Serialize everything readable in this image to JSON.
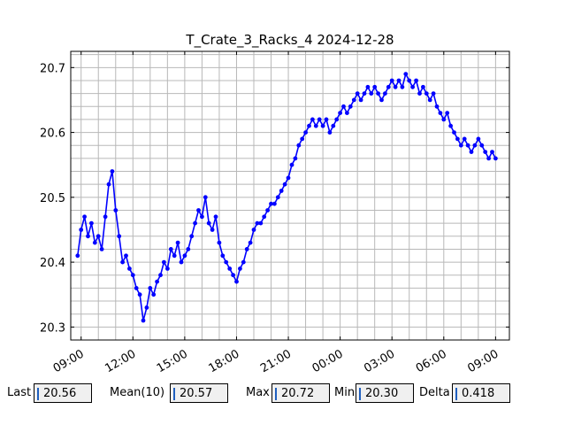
{
  "chart_data": {
    "type": "line",
    "title": "T_Crate_3_Racks_4 2024-12-28",
    "xlabel": "",
    "ylabel": "",
    "x_ticks": [
      "09:00",
      "12:00",
      "15:00",
      "18:00",
      "21:00",
      "00:00",
      "03:00",
      "06:00",
      "09:00"
    ],
    "x_range_hours": [
      8.4,
      33.8
    ],
    "y_ticks": [
      "20.3",
      "20.4",
      "20.5",
      "20.6",
      "20.7"
    ],
    "ylim": [
      20.28,
      20.725
    ],
    "grid": true,
    "marker": "o",
    "series": [
      {
        "color": "#0000ff",
        "points": [
          [
            8.8,
            20.41
          ],
          [
            9.0,
            20.45
          ],
          [
            9.2,
            20.47
          ],
          [
            9.4,
            20.44
          ],
          [
            9.6,
            20.46
          ],
          [
            9.8,
            20.43
          ],
          [
            10.0,
            20.44
          ],
          [
            10.2,
            20.42
          ],
          [
            10.4,
            20.47
          ],
          [
            10.6,
            20.52
          ],
          [
            10.8,
            20.54
          ],
          [
            11.0,
            20.48
          ],
          [
            11.2,
            20.44
          ],
          [
            11.4,
            20.4
          ],
          [
            11.6,
            20.41
          ],
          [
            11.8,
            20.39
          ],
          [
            12.0,
            20.38
          ],
          [
            12.2,
            20.36
          ],
          [
            12.4,
            20.35
          ],
          [
            12.6,
            20.31
          ],
          [
            12.8,
            20.33
          ],
          [
            13.0,
            20.36
          ],
          [
            13.2,
            20.35
          ],
          [
            13.4,
            20.37
          ],
          [
            13.6,
            20.38
          ],
          [
            13.8,
            20.4
          ],
          [
            14.0,
            20.39
          ],
          [
            14.2,
            20.42
          ],
          [
            14.4,
            20.41
          ],
          [
            14.6,
            20.43
          ],
          [
            14.8,
            20.4
          ],
          [
            15.0,
            20.41
          ],
          [
            15.2,
            20.42
          ],
          [
            15.4,
            20.44
          ],
          [
            15.6,
            20.46
          ],
          [
            15.8,
            20.48
          ],
          [
            16.0,
            20.47
          ],
          [
            16.2,
            20.5
          ],
          [
            16.4,
            20.46
          ],
          [
            16.6,
            20.45
          ],
          [
            16.8,
            20.47
          ],
          [
            17.0,
            20.43
          ],
          [
            17.2,
            20.41
          ],
          [
            17.4,
            20.4
          ],
          [
            17.6,
            20.39
          ],
          [
            17.8,
            20.38
          ],
          [
            18.0,
            20.37
          ],
          [
            18.2,
            20.39
          ],
          [
            18.4,
            20.4
          ],
          [
            18.6,
            20.42
          ],
          [
            18.8,
            20.43
          ],
          [
            19.0,
            20.45
          ],
          [
            19.2,
            20.46
          ],
          [
            19.4,
            20.46
          ],
          [
            19.6,
            20.47
          ],
          [
            19.8,
            20.48
          ],
          [
            20.0,
            20.49
          ],
          [
            20.2,
            20.49
          ],
          [
            20.4,
            20.5
          ],
          [
            20.6,
            20.51
          ],
          [
            20.8,
            20.52
          ],
          [
            21.0,
            20.53
          ],
          [
            21.2,
            20.55
          ],
          [
            21.4,
            20.56
          ],
          [
            21.6,
            20.58
          ],
          [
            21.8,
            20.59
          ],
          [
            22.0,
            20.6
          ],
          [
            22.2,
            20.61
          ],
          [
            22.4,
            20.62
          ],
          [
            22.6,
            20.61
          ],
          [
            22.8,
            20.62
          ],
          [
            23.0,
            20.61
          ],
          [
            23.2,
            20.62
          ],
          [
            23.4,
            20.6
          ],
          [
            23.6,
            20.61
          ],
          [
            23.8,
            20.62
          ],
          [
            24.0,
            20.63
          ],
          [
            24.2,
            20.64
          ],
          [
            24.4,
            20.63
          ],
          [
            24.6,
            20.64
          ],
          [
            24.8,
            20.65
          ],
          [
            25.0,
            20.66
          ],
          [
            25.2,
            20.65
          ],
          [
            25.4,
            20.66
          ],
          [
            25.6,
            20.67
          ],
          [
            25.8,
            20.66
          ],
          [
            26.0,
            20.67
          ],
          [
            26.2,
            20.66
          ],
          [
            26.4,
            20.65
          ],
          [
            26.6,
            20.66
          ],
          [
            26.8,
            20.67
          ],
          [
            27.0,
            20.68
          ],
          [
            27.2,
            20.67
          ],
          [
            27.4,
            20.68
          ],
          [
            27.6,
            20.67
          ],
          [
            27.8,
            20.69
          ],
          [
            28.0,
            20.68
          ],
          [
            28.2,
            20.67
          ],
          [
            28.4,
            20.68
          ],
          [
            28.6,
            20.66
          ],
          [
            28.8,
            20.67
          ],
          [
            29.0,
            20.66
          ],
          [
            29.2,
            20.65
          ],
          [
            29.4,
            20.66
          ],
          [
            29.6,
            20.64
          ],
          [
            29.8,
            20.63
          ],
          [
            30.0,
            20.62
          ],
          [
            30.2,
            20.63
          ],
          [
            30.4,
            20.61
          ],
          [
            30.6,
            20.6
          ],
          [
            30.8,
            20.59
          ],
          [
            31.0,
            20.58
          ],
          [
            31.2,
            20.59
          ],
          [
            31.4,
            20.58
          ],
          [
            31.6,
            20.57
          ],
          [
            31.8,
            20.58
          ],
          [
            32.0,
            20.59
          ],
          [
            32.2,
            20.58
          ],
          [
            32.4,
            20.57
          ],
          [
            32.6,
            20.56
          ],
          [
            32.8,
            20.57
          ],
          [
            33.0,
            20.56
          ]
        ]
      }
    ]
  },
  "stats": {
    "last_label": "Last",
    "last_value": "20.56",
    "mean_label": "Mean(10)",
    "mean_value": "20.57",
    "max_label": "Max",
    "max_value": "20.72",
    "min_label": "Min",
    "min_value": "20.30",
    "delta_label": "Delta",
    "delta_value": "0.418"
  }
}
